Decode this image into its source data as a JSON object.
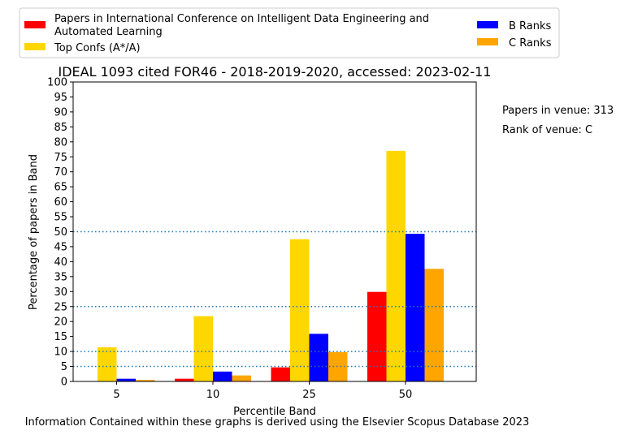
{
  "chart_data": {
    "type": "bar",
    "title": "IDEAL 1093 cited FOR46 - 2018-2019-2020, accessed: 2023-02-11",
    "xlabel": "Percentile Band",
    "ylabel": "Percentage of papers in Band",
    "categories": [
      "5",
      "10",
      "25",
      "50"
    ],
    "ylim": [
      0,
      100
    ],
    "yticks": [
      0,
      5,
      10,
      15,
      20,
      25,
      30,
      35,
      40,
      45,
      50,
      55,
      60,
      65,
      70,
      75,
      80,
      85,
      90,
      95,
      100
    ],
    "reference_lines": [
      5,
      10,
      25,
      50
    ],
    "series": [
      {
        "name": "Papers in International Conference on Intelligent Data Engineering and Automated Learning",
        "color": "#ff0000",
        "values": [
          0,
          0.9,
          4.7,
          29.9
        ]
      },
      {
        "name": "Top Confs (A*/A)",
        "color": "#ffd700",
        "values": [
          11.4,
          21.8,
          47.5,
          77.0
        ]
      },
      {
        "name": "B Ranks",
        "color": "#0000ff",
        "values": [
          0.9,
          3.3,
          15.9,
          49.3
        ]
      },
      {
        "name": "C Ranks",
        "color": "#ffa500",
        "values": [
          0.5,
          2.0,
          9.8,
          37.6
        ]
      }
    ],
    "legend_position": "top",
    "grid": false
  },
  "side_notes": {
    "papers_in_venue": "Papers in venue: 313",
    "rank_of_venue": "Rank of venue: C"
  },
  "footer": "Information Contained within these graphs is derived using the Elsevier Scopus Database 2023"
}
